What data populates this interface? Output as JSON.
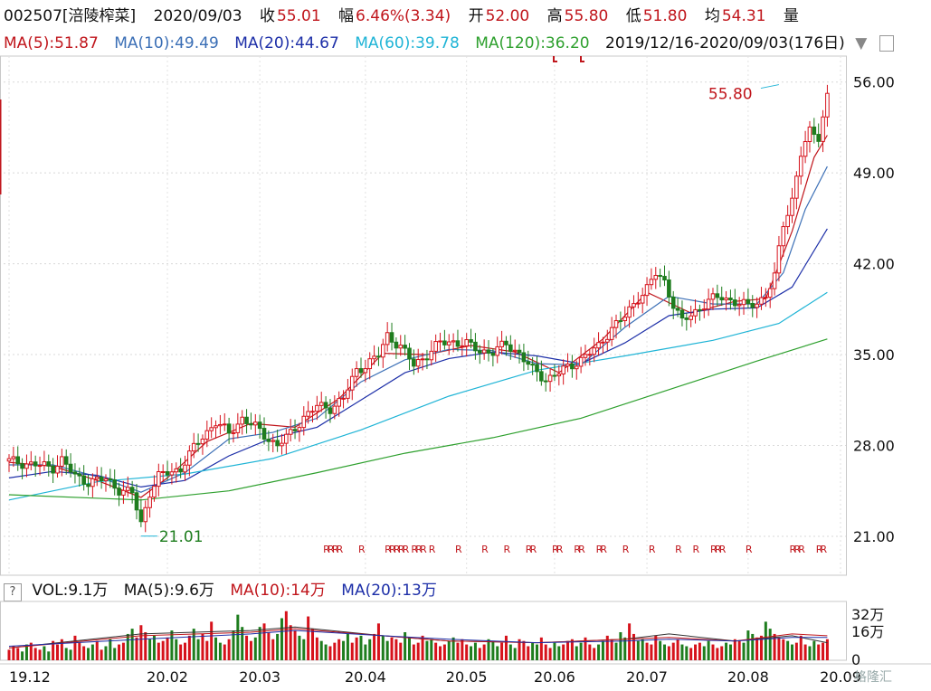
{
  "header": {
    "code_name": "002507[涪陵榨菜]",
    "date": "2020/09/03",
    "close_label": "收",
    "close": "55.01",
    "change_label": "幅",
    "change": "6.46%(3.34)",
    "open_label": "开",
    "open": "52.00",
    "high_label": "高",
    "high": "55.80",
    "low_label": "低",
    "low": "51.80",
    "avg_label": "均",
    "avg": "54.31",
    "vol_label": "量"
  },
  "ma_legend": [
    {
      "text": "MA(5):51.87",
      "color": "#c0161c"
    },
    {
      "text": "MA(10):49.49",
      "color": "#3b6fb6"
    },
    {
      "text": "MA(20):44.67",
      "color": "#1d2fa8"
    },
    {
      "text": "MA(60):39.78",
      "color": "#1fb4d6"
    },
    {
      "text": "MA(120):36.20",
      "color": "#2ea02e"
    }
  ],
  "range_text": "2019/12/16-2020/09/03(176日)",
  "volume_legend": {
    "help": "?",
    "items": [
      {
        "text": "VOL:9.1万",
        "color": "#111111"
      },
      {
        "text": "MA(5):9.6万",
        "color": "#111111"
      },
      {
        "text": "MA(10):14万",
        "color": "#c0161c"
      },
      {
        "text": "MA(20):13万",
        "color": "#1d2fa8"
      }
    ]
  },
  "volume_axis": [
    "32万",
    "16万",
    "0"
  ],
  "watermark": "格隆汇",
  "colors": {
    "up": "#d6121b",
    "down": "#1e7d1e",
    "ma5": "#c0161c",
    "ma10": "#3b6fb6",
    "ma20": "#1d2fa8",
    "ma60": "#1fb4d6",
    "ma120": "#2ea02e"
  },
  "chart_data": {
    "type": "candlestick",
    "y_ticks": [
      "56.00",
      "49.00",
      "42.00",
      "35.00",
      "28.00",
      "21.00"
    ],
    "ylim": [
      18,
      58
    ],
    "x_ticks": [
      "19.12",
      "20.02",
      "20.03",
      "20.04",
      "20.05",
      "20.06",
      "20.07",
      "20.08",
      "20.09"
    ],
    "x_tick_index": [
      0,
      36,
      57,
      81,
      104,
      124,
      145,
      168,
      189
    ],
    "annotations": {
      "high": "55.80",
      "low": "21.01",
      "high_index": 175,
      "low_index": 30
    },
    "r_label": "R",
    "r_marks": [
      72,
      73,
      74,
      75,
      80,
      86,
      87,
      88,
      89,
      90,
      92,
      93,
      94,
      96,
      102,
      108,
      113,
      118,
      119,
      124,
      125,
      129,
      130,
      134,
      135,
      140,
      146,
      152,
      156,
      160,
      161,
      162,
      168,
      178,
      179,
      180,
      184,
      185
    ],
    "close_path": [
      [
        0,
        26.8
      ],
      [
        6,
        26.5
      ],
      [
        10,
        26.3
      ],
      [
        12,
        26.9
      ],
      [
        15,
        25.6
      ],
      [
        18,
        25.2
      ],
      [
        22,
        25.4
      ],
      [
        25,
        24.6
      ],
      [
        28,
        24.3
      ],
      [
        30,
        22.0
      ],
      [
        32,
        24.4
      ],
      [
        34,
        25.6
      ],
      [
        36,
        25.9
      ],
      [
        39,
        26.2
      ],
      [
        41,
        27.3
      ],
      [
        44,
        28.7
      ],
      [
        47,
        29.8
      ],
      [
        50,
        28.9
      ],
      [
        53,
        30.1
      ],
      [
        56,
        29.4
      ],
      [
        58,
        28.8
      ],
      [
        61,
        28.0
      ],
      [
        64,
        28.9
      ],
      [
        67,
        30.2
      ],
      [
        70,
        31.0
      ],
      [
        73,
        30.9
      ],
      [
        76,
        31.6
      ],
      [
        79,
        33.8
      ],
      [
        81,
        34.2
      ],
      [
        84,
        34.9
      ],
      [
        86,
        36.5
      ],
      [
        89,
        35.6
      ],
      [
        92,
        34.2
      ],
      [
        95,
        35.0
      ],
      [
        98,
        35.9
      ],
      [
        101,
        36.0
      ],
      [
        104,
        35.8
      ],
      [
        107,
        35.3
      ],
      [
        110,
        35.2
      ],
      [
        113,
        35.8
      ],
      [
        116,
        35.1
      ],
      [
        119,
        33.8
      ],
      [
        122,
        33.1
      ],
      [
        125,
        33.6
      ],
      [
        128,
        34.2
      ],
      [
        131,
        34.9
      ],
      [
        134,
        35.6
      ],
      [
        137,
        37.1
      ],
      [
        140,
        37.9
      ],
      [
        143,
        39.4
      ],
      [
        145,
        40.1
      ],
      [
        147,
        41.2
      ],
      [
        149,
        40.6
      ],
      [
        151,
        38.9
      ],
      [
        153,
        37.5
      ],
      [
        156,
        38.3
      ],
      [
        159,
        39.2
      ],
      [
        162,
        39.4
      ],
      [
        165,
        39.1
      ],
      [
        168,
        38.7
      ],
      [
        170,
        39.0
      ],
      [
        172,
        39.6
      ],
      [
        174,
        41.0
      ],
      [
        176,
        45.0
      ],
      [
        178,
        47.0
      ],
      [
        180,
        50.5
      ],
      [
        182,
        52.1
      ],
      [
        184,
        51.8
      ],
      [
        186,
        55.0
      ]
    ],
    "ma_lines": {
      "MA(5)": [
        [
          0,
          26.7
        ],
        [
          10,
          26.4
        ],
        [
          20,
          25.3
        ],
        [
          30,
          24.0
        ],
        [
          36,
          25.5
        ],
        [
          45,
          28.3
        ],
        [
          55,
          29.7
        ],
        [
          65,
          29.4
        ],
        [
          75,
          31.6
        ],
        [
          85,
          35.1
        ],
        [
          95,
          35.0
        ],
        [
          105,
          35.7
        ],
        [
          115,
          35.2
        ],
        [
          125,
          33.6
        ],
        [
          135,
          36.2
        ],
        [
          145,
          39.8
        ],
        [
          155,
          38.2
        ],
        [
          165,
          39.1
        ],
        [
          172,
          39.3
        ],
        [
          178,
          44.5
        ],
        [
          183,
          50.2
        ],
        [
          186,
          51.9
        ]
      ],
      "MA(10)": [
        [
          0,
          26.5
        ],
        [
          10,
          26.5
        ],
        [
          20,
          25.6
        ],
        [
          30,
          24.4
        ],
        [
          40,
          25.9
        ],
        [
          50,
          28.5
        ],
        [
          60,
          29.0
        ],
        [
          70,
          30.1
        ],
        [
          80,
          32.9
        ],
        [
          90,
          34.6
        ],
        [
          100,
          35.4
        ],
        [
          110,
          35.3
        ],
        [
          120,
          34.3
        ],
        [
          130,
          34.2
        ],
        [
          140,
          37.1
        ],
        [
          150,
          39.5
        ],
        [
          160,
          38.9
        ],
        [
          170,
          38.9
        ],
        [
          176,
          41.3
        ],
        [
          181,
          46.2
        ],
        [
          186,
          49.5
        ]
      ],
      "MA(20)": [
        [
          0,
          25.5
        ],
        [
          10,
          26.0
        ],
        [
          20,
          25.7
        ],
        [
          30,
          24.8
        ],
        [
          40,
          25.3
        ],
        [
          50,
          27.2
        ],
        [
          60,
          28.6
        ],
        [
          70,
          29.4
        ],
        [
          80,
          31.5
        ],
        [
          90,
          33.6
        ],
        [
          100,
          34.7
        ],
        [
          110,
          35.2
        ],
        [
          120,
          34.9
        ],
        [
          130,
          34.3
        ],
        [
          140,
          35.9
        ],
        [
          150,
          38.0
        ],
        [
          160,
          38.5
        ],
        [
          170,
          38.6
        ],
        [
          178,
          40.2
        ],
        [
          186,
          44.7
        ]
      ],
      "MA(60)": [
        [
          0,
          23.8
        ],
        [
          20,
          25.2
        ],
        [
          40,
          25.8
        ],
        [
          60,
          27.0
        ],
        [
          80,
          29.2
        ],
        [
          100,
          31.8
        ],
        [
          120,
          33.8
        ],
        [
          140,
          34.9
        ],
        [
          160,
          36.1
        ],
        [
          175,
          37.4
        ],
        [
          186,
          39.8
        ]
      ],
      "MA(120)": [
        [
          0,
          24.2
        ],
        [
          30,
          23.8
        ],
        [
          50,
          24.5
        ],
        [
          70,
          25.9
        ],
        [
          90,
          27.4
        ],
        [
          110,
          28.6
        ],
        [
          130,
          30.1
        ],
        [
          150,
          32.3
        ],
        [
          170,
          34.5
        ],
        [
          186,
          36.2
        ]
      ]
    },
    "volume": {
      "max": 32,
      "values": [
        6,
        8,
        7,
        5,
        9,
        10,
        7,
        6,
        8,
        5,
        11,
        9,
        12,
        7,
        6,
        14,
        10,
        8,
        7,
        9,
        11,
        6,
        8,
        12,
        7,
        9,
        10,
        15,
        18,
        13,
        20,
        16,
        12,
        14,
        10,
        11,
        13,
        17,
        12,
        9,
        10,
        14,
        18,
        12,
        15,
        11,
        22,
        13,
        10,
        9,
        12,
        17,
        26,
        19,
        14,
        11,
        13,
        19,
        21,
        16,
        12,
        15,
        24,
        28,
        20,
        17,
        14,
        12,
        25,
        18,
        13,
        11,
        9,
        8,
        10,
        12,
        11,
        15,
        10,
        13,
        14,
        9,
        12,
        15,
        21,
        14,
        11,
        13,
        12,
        10,
        16,
        13,
        9,
        10,
        14,
        11,
        12,
        10,
        8,
        9,
        11,
        13,
        10,
        12,
        9,
        8,
        10,
        7,
        9,
        12,
        11,
        8,
        10,
        14,
        9,
        7,
        12,
        11,
        8,
        10,
        9,
        13,
        9,
        7,
        10,
        8,
        9,
        11,
        12,
        8,
        10,
        13,
        9,
        7,
        9,
        11,
        14,
        12,
        10,
        16,
        13,
        21,
        15,
        11,
        12,
        10,
        9,
        14,
        11,
        9,
        8,
        10,
        12,
        9,
        8,
        7,
        9,
        10,
        8,
        11,
        9,
        7,
        8,
        10,
        9,
        12,
        11,
        10,
        17,
        15,
        13,
        14,
        22,
        18,
        15,
        13,
        12,
        11,
        9,
        10,
        14,
        9,
        8,
        11,
        9,
        10,
        12,
        9,
        11,
        9
      ],
      "ma_lines": {
        "MA(5)": [
          [
            0,
            7
          ],
          [
            30,
            15
          ],
          [
            55,
            17
          ],
          [
            65,
            19
          ],
          [
            85,
            14
          ],
          [
            100,
            11
          ],
          [
            120,
            10
          ],
          [
            140,
            12
          ],
          [
            150,
            15
          ],
          [
            165,
            11
          ],
          [
            178,
            14
          ],
          [
            186,
            10
          ]
        ],
        "MA(10)": [
          [
            0,
            7
          ],
          [
            30,
            14
          ],
          [
            55,
            16
          ],
          [
            65,
            18
          ],
          [
            85,
            14
          ],
          [
            100,
            11
          ],
          [
            120,
            10
          ],
          [
            140,
            12
          ],
          [
            150,
            13
          ],
          [
            165,
            11
          ],
          [
            178,
            15
          ],
          [
            186,
            14
          ]
        ],
        "MA(20)": [
          [
            0,
            8
          ],
          [
            30,
            12
          ],
          [
            55,
            15
          ],
          [
            65,
            17
          ],
          [
            85,
            14
          ],
          [
            100,
            12
          ],
          [
            120,
            10
          ],
          [
            140,
            11
          ],
          [
            150,
            12
          ],
          [
            165,
            11
          ],
          [
            178,
            13
          ],
          [
            186,
            13
          ]
        ]
      }
    }
  }
}
